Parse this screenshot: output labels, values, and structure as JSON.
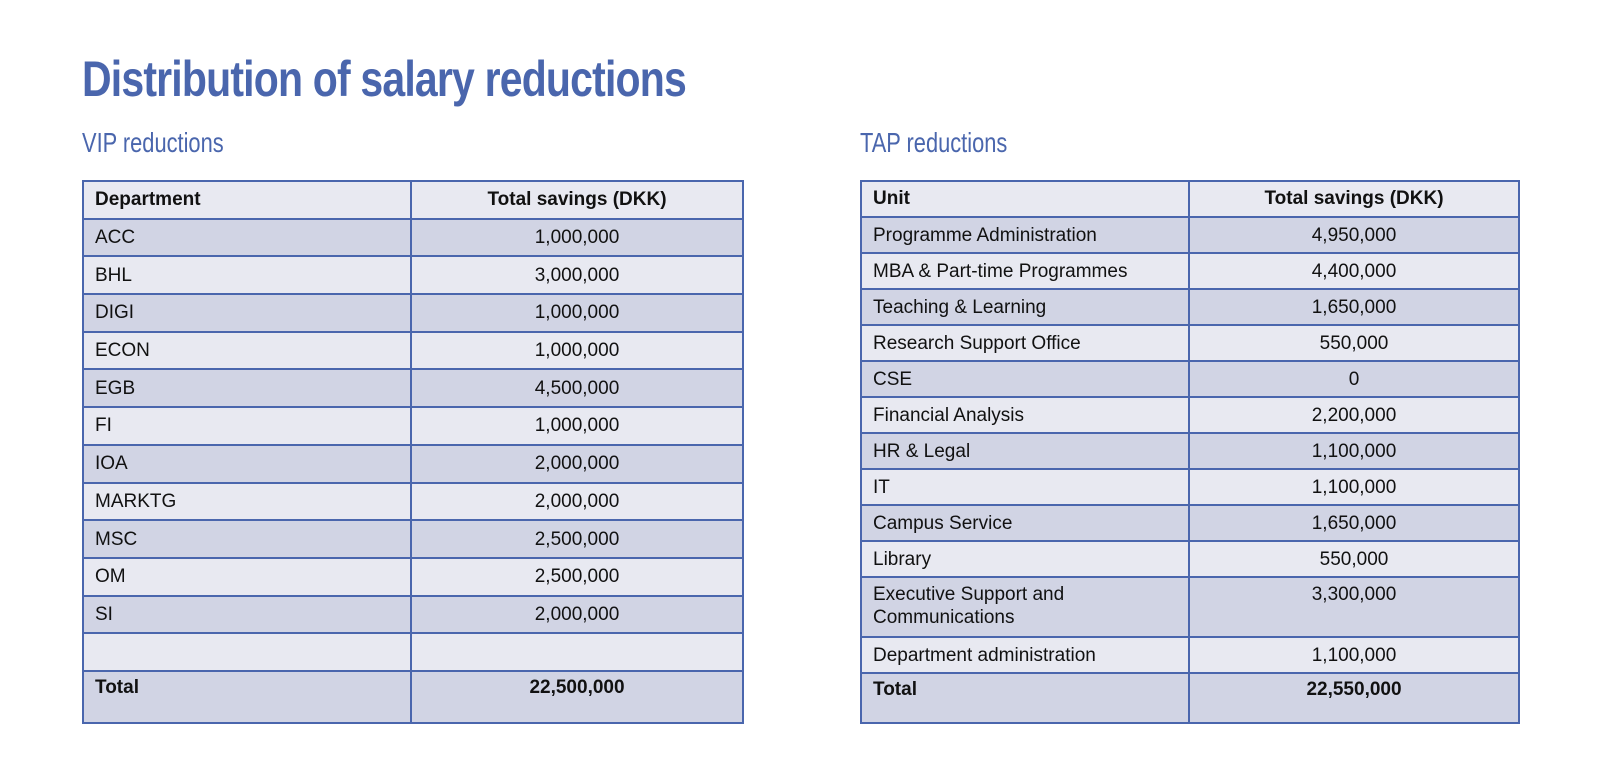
{
  "title": "Distribution of salary reductions",
  "vip": {
    "heading": "VIP reductions",
    "col_name": "Department",
    "col_value": "Total savings (DKK)",
    "rows": [
      {
        "name": "ACC",
        "value": "1,000,000"
      },
      {
        "name": "BHL",
        "value": "3,000,000"
      },
      {
        "name": "DIGI",
        "value": "1,000,000"
      },
      {
        "name": "ECON",
        "value": "1,000,000"
      },
      {
        "name": "EGB",
        "value": "4,500,000"
      },
      {
        "name": "FI",
        "value": "1,000,000"
      },
      {
        "name": "IOA",
        "value": "2,000,000"
      },
      {
        "name": "MARKTG",
        "value": "2,000,000"
      },
      {
        "name": "MSC",
        "value": "2,500,000"
      },
      {
        "name": "OM",
        "value": "2,500,000"
      },
      {
        "name": "SI",
        "value": "2,000,000"
      },
      {
        "name": "",
        "value": ""
      }
    ],
    "total_label": "Total",
    "total_value": "22,500,000"
  },
  "tap": {
    "heading": "TAP reductions",
    "col_name": "Unit",
    "col_value": "Total savings (DKK)",
    "rows": [
      {
        "name": "Programme Administration",
        "value": "4,950,000"
      },
      {
        "name": "MBA & Part-time Programmes",
        "value": "4,400,000"
      },
      {
        "name": "Teaching & Learning",
        "value": "1,650,000"
      },
      {
        "name": "Research Support Office",
        "value": "550,000"
      },
      {
        "name": "CSE",
        "value": "0"
      },
      {
        "name": "Financial Analysis",
        "value": "2,200,000"
      },
      {
        "name": "HR & Legal",
        "value": "1,100,000"
      },
      {
        "name": "IT",
        "value": "1,100,000"
      },
      {
        "name": "Campus Service",
        "value": "1,650,000"
      },
      {
        "name": "Library",
        "value": "550,000"
      },
      {
        "name": "Executive Support and Communications",
        "value": "3,300,000"
      },
      {
        "name": "Department administration",
        "value": "1,100,000"
      }
    ],
    "total_label": "Total",
    "total_value": "22,550,000"
  },
  "colors": {
    "accent": "#4a66ad",
    "row_light": "#e8e9f1",
    "row_dark": "#d1d4e4"
  }
}
